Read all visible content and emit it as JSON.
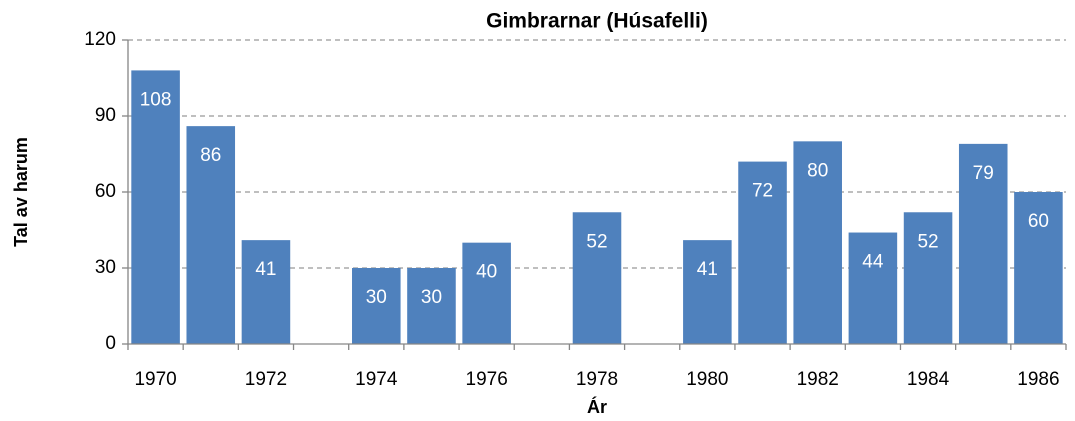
{
  "chart_data": {
    "type": "bar",
    "title": "Gimbrarnar (Húsafelli)",
    "x_label": "Ár",
    "y_label": "Tal av harum",
    "categories": [
      "1970",
      null,
      "1972",
      null,
      "1974",
      null,
      "1976",
      null,
      "1978",
      null,
      "1980",
      null,
      "1982",
      null,
      "1984",
      null,
      "1986"
    ],
    "values": [
      108,
      86,
      41,
      null,
      30,
      30,
      40,
      null,
      52,
      null,
      41,
      72,
      80,
      44,
      52,
      79,
      60
    ],
    "color": "#4f81bd",
    "ylim": [
      0,
      120
    ],
    "yticks": [
      0,
      30,
      60,
      90,
      120
    ],
    "grid": true
  }
}
